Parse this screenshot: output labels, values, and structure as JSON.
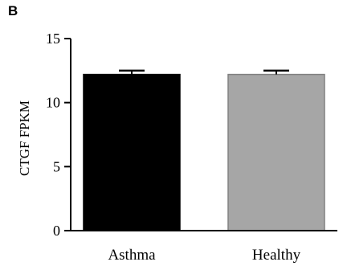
{
  "panel_label": "B",
  "chart_data": {
    "type": "bar",
    "categories": [
      "Asthma",
      "Healthy"
    ],
    "values": [
      12.2,
      12.2
    ],
    "error": [
      0.3,
      0.3
    ],
    "colors": [
      "#000000",
      "#a6a6a6"
    ],
    "title": "",
    "xlabel": "",
    "ylabel": "CTGF FPKM",
    "ylim": [
      0,
      15
    ],
    "yticks": [
      0,
      5,
      10,
      15
    ],
    "ytick_labels": [
      "0",
      "5",
      "10",
      "15"
    ],
    "grid": false
  }
}
